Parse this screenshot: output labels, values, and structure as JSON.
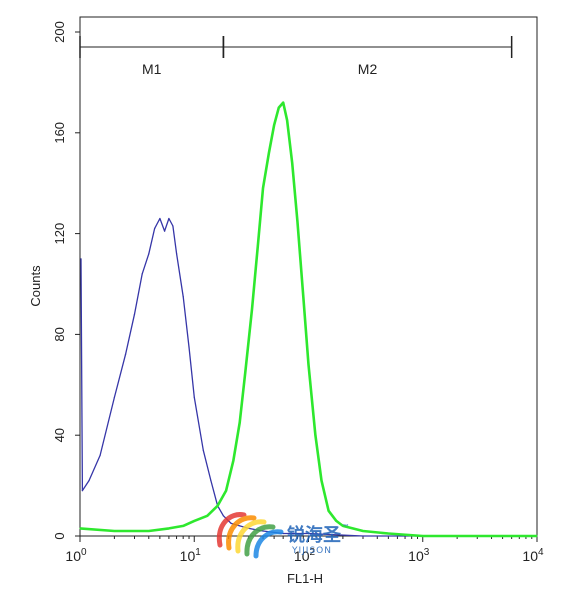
{
  "chart_data": {
    "type": "line",
    "xlabel": "FL1-H",
    "ylabel": "Counts",
    "xscale": "log",
    "xlim": [
      1,
      10000
    ],
    "ylim": [
      0,
      200
    ],
    "x_ticks": [
      {
        "value": 1,
        "base": "10",
        "exp": "0"
      },
      {
        "value": 10,
        "base": "10",
        "exp": "1"
      },
      {
        "value": 100,
        "base": "10",
        "exp": "2"
      },
      {
        "value": 1000,
        "base": "10",
        "exp": "3"
      },
      {
        "value": 10000,
        "base": "10",
        "exp": "4"
      }
    ],
    "y_ticks": [
      "0",
      "40",
      "80",
      "120",
      "160",
      "200"
    ],
    "gates": [
      {
        "label": "M1",
        "start": 1,
        "end": 18
      },
      {
        "label": "M2",
        "start": 18,
        "end": 6000
      }
    ],
    "series": [
      {
        "color": "#3636a8",
        "points": [
          [
            1.02,
            110
          ],
          [
            1.05,
            18
          ],
          [
            1.2,
            22
          ],
          [
            1.5,
            32
          ],
          [
            2,
            55
          ],
          [
            2.5,
            72
          ],
          [
            3,
            88
          ],
          [
            3.5,
            104
          ],
          [
            4,
            112
          ],
          [
            4.5,
            122
          ],
          [
            5,
            126
          ],
          [
            5.5,
            121
          ],
          [
            6,
            126
          ],
          [
            6.5,
            123
          ],
          [
            7,
            112
          ],
          [
            8,
            95
          ],
          [
            9,
            75
          ],
          [
            10,
            55
          ],
          [
            12,
            34
          ],
          [
            14,
            22
          ],
          [
            16,
            12
          ],
          [
            18,
            8
          ],
          [
            21,
            5
          ],
          [
            25,
            4
          ],
          [
            30,
            3
          ],
          [
            40,
            2
          ],
          [
            60,
            1
          ],
          [
            100,
            1
          ],
          [
            300,
            0
          ],
          [
            10000,
            0
          ]
        ]
      },
      {
        "color": "#2ee82e",
        "points": [
          [
            1,
            3
          ],
          [
            2,
            2
          ],
          [
            4,
            2
          ],
          [
            6,
            3
          ],
          [
            8,
            4
          ],
          [
            10,
            6
          ],
          [
            13,
            8
          ],
          [
            16,
            12
          ],
          [
            19,
            18
          ],
          [
            22,
            30
          ],
          [
            25,
            45
          ],
          [
            28,
            65
          ],
          [
            32,
            90
          ],
          [
            36,
            115
          ],
          [
            40,
            138
          ],
          [
            45,
            152
          ],
          [
            50,
            163
          ],
          [
            55,
            170
          ],
          [
            60,
            172
          ],
          [
            65,
            165
          ],
          [
            72,
            148
          ],
          [
            80,
            125
          ],
          [
            90,
            95
          ],
          [
            100,
            68
          ],
          [
            115,
            40
          ],
          [
            130,
            22
          ],
          [
            150,
            10
          ],
          [
            175,
            6
          ],
          [
            200,
            4
          ],
          [
            300,
            2
          ],
          [
            500,
            1
          ],
          [
            1000,
            0
          ],
          [
            10000,
            0
          ]
        ]
      }
    ]
  },
  "logo": {
    "text": "锐海圣",
    "tm": "™",
    "sub": "YIJISON"
  }
}
